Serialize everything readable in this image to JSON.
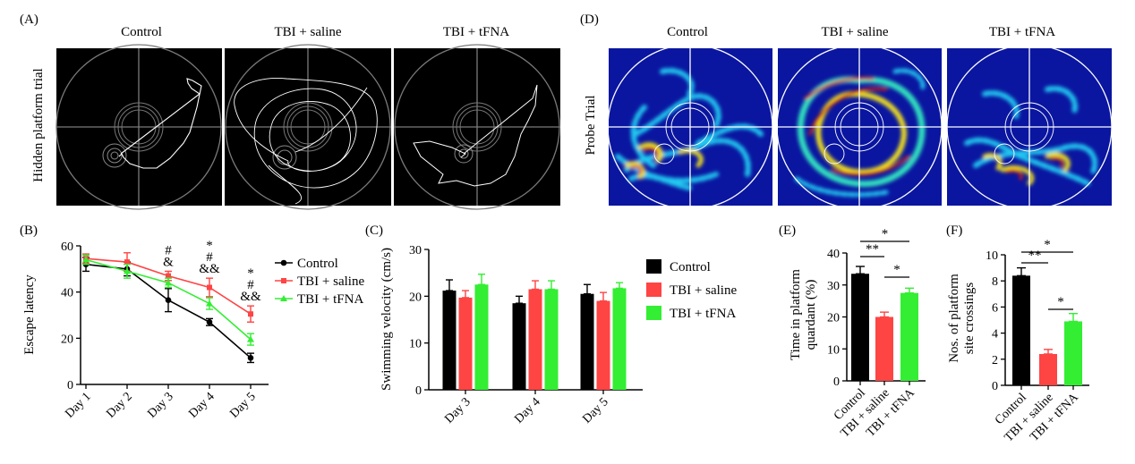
{
  "panels": {
    "A": {
      "letter": "(A)",
      "row_label": "Hidden platform trial",
      "groups": [
        "Control",
        "TBI + saline",
        "TBI + tFNA"
      ]
    },
    "D": {
      "letter": "(D)",
      "row_label": "Probe Trial",
      "groups": [
        "Control",
        "TBI + saline",
        "TBI + tFNA"
      ]
    },
    "B": {
      "letter": "(B)"
    },
    "C": {
      "letter": "(C)"
    },
    "E": {
      "letter": "(E)"
    },
    "F": {
      "letter": "(F)"
    }
  },
  "colors": {
    "control": "#000000",
    "saline": "#ff4444",
    "tfna": "#33ee33",
    "probe_bg": "#0a16a0",
    "track_bg": "#000000"
  },
  "chart_data": [
    {
      "id": "B",
      "type": "line",
      "ylabel": "Escape latency",
      "xlabel": "",
      "categories": [
        "Day 1",
        "Day 2",
        "Day 3",
        "Day 4",
        "Day 5"
      ],
      "ylim": [
        0,
        60
      ],
      "yticks": [
        "0",
        "20",
        "40",
        "60"
      ],
      "series": [
        {
          "name": "Control",
          "values": [
            52,
            50,
            36.5,
            27,
            11.5
          ],
          "errors": [
            3,
            3,
            5,
            1.5,
            2
          ]
        },
        {
          "name": "TBI + saline",
          "values": [
            54.5,
            53,
            47,
            42,
            30.5
          ],
          "errors": [
            2,
            4,
            2,
            4,
            3.5
          ]
        },
        {
          "name": "TBI + tFNA",
          "values": [
            54,
            49,
            44,
            35,
            19.5
          ],
          "errors": [
            2,
            3,
            2,
            2.5,
            2.5
          ]
        }
      ],
      "annotations": [
        {
          "category": "Day 3",
          "lines": [
            "#",
            "&"
          ]
        },
        {
          "category": "Day 4",
          "lines": [
            "*",
            "#",
            "&&"
          ]
        },
        {
          "category": "Day 5",
          "lines": [
            "*",
            "#",
            "&&"
          ]
        }
      ],
      "legend": "right"
    },
    {
      "id": "C",
      "type": "bar",
      "ylabel": "Swimming velocity (cm/s)",
      "categories": [
        "Day 3",
        "Day 4",
        "Day 5"
      ],
      "ylim": [
        0,
        30
      ],
      "yticks": [
        "0",
        "10",
        "20",
        "30"
      ],
      "series": [
        {
          "name": "Control",
          "values": [
            21.2,
            18.5,
            20.5
          ],
          "errors": [
            2.3,
            1.5,
            2.0
          ]
        },
        {
          "name": "TBI + saline",
          "values": [
            19.7,
            21.5,
            19.0
          ],
          "errors": [
            1.5,
            1.8,
            1.8
          ]
        },
        {
          "name": "TBI + tFNA",
          "values": [
            22.5,
            21.5,
            21.7
          ],
          "errors": [
            2.2,
            1.8,
            1.2
          ]
        }
      ],
      "legend": "right"
    },
    {
      "id": "E",
      "type": "bar",
      "ylabel_lines": [
        "Time in platform",
        "quardant (%)"
      ],
      "categories": [
        "Control",
        "TBI + saline",
        "TBI + tFNA"
      ],
      "values": [
        33.5,
        20,
        27.5
      ],
      "errors": [
        2.3,
        1.5,
        1.5
      ],
      "ylim": [
        0,
        40
      ],
      "yticks": [
        "0",
        "10",
        "20",
        "30",
        "40"
      ],
      "significance": [
        {
          "from": 0,
          "to": 1,
          "label": "**"
        },
        {
          "from": 0,
          "to": 2,
          "label": "*"
        },
        {
          "from": 1,
          "to": 2,
          "label": "*"
        }
      ]
    },
    {
      "id": "F",
      "type": "bar",
      "ylabel_lines": [
        "Nos. of platform",
        "site crossings"
      ],
      "categories": [
        "Control",
        "TBI + saline",
        "TBI + tFNA"
      ],
      "values": [
        8.4,
        2.4,
        4.9
      ],
      "errors": [
        0.6,
        0.35,
        0.6
      ],
      "ylim": [
        0,
        10
      ],
      "yticks": [
        "0",
        "2",
        "4",
        "6",
        "8",
        "10"
      ],
      "significance": [
        {
          "from": 0,
          "to": 1,
          "label": "**"
        },
        {
          "from": 0,
          "to": 2,
          "label": "*"
        },
        {
          "from": 1,
          "to": 2,
          "label": "*"
        }
      ]
    }
  ]
}
